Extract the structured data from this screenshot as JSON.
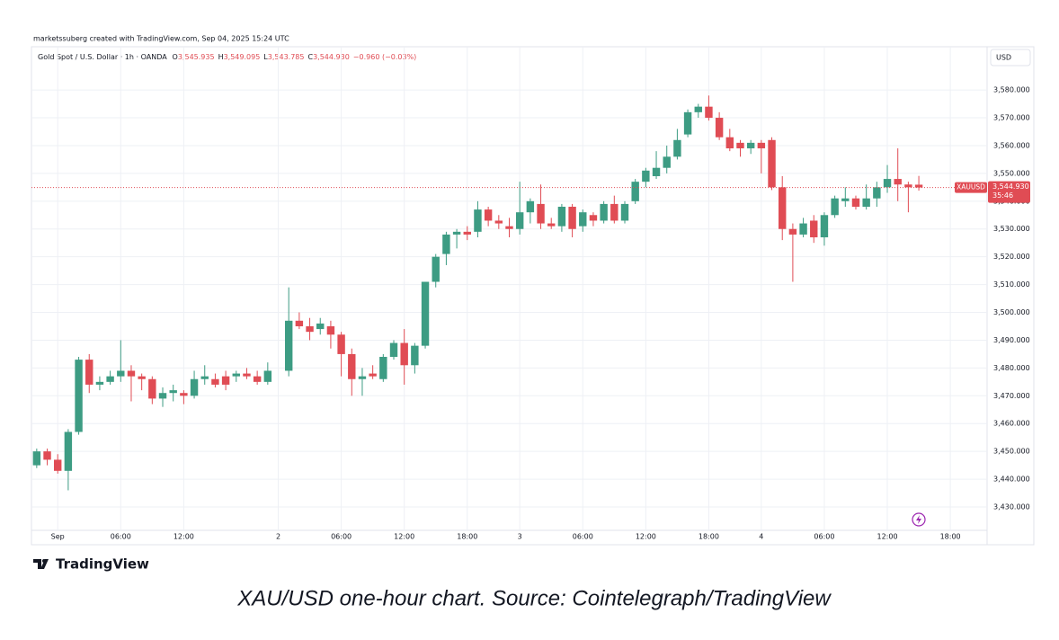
{
  "chart_data": {
    "type": "candlestick",
    "header": "marketssuberg created with TradingView.com, Sep 04, 2025 15:24 UTC",
    "symbol": "Gold Spot / U.S. Dollar · 1h · OANDA",
    "ohlc_legend": [
      [
        "O",
        "3,545.935"
      ],
      [
        "H",
        "3,549.095"
      ],
      [
        "L",
        "3,543.785"
      ],
      [
        "C",
        "3,544.930"
      ]
    ],
    "change": "−0.960 (−0.03%)",
    "currency": "USD",
    "ticker": "XAUUSD",
    "last_price": {
      "value": 3544.93,
      "label": "3,544.930"
    },
    "countdown": "35:46",
    "brand": "TradingView",
    "caption": "XAU/USD one-hour chart. Source: Cointelegraph/TradingView",
    "up_color": "#3d9c83",
    "down_color": "#e04c54",
    "grid": true,
    "categories": [
      null,
      null,
      "Sep",
      null,
      null,
      null,
      null,
      null,
      "06:00",
      null,
      null,
      null,
      null,
      null,
      "12:00",
      null,
      null,
      null,
      null,
      null,
      null,
      null,
      null,
      "2",
      null,
      null,
      null,
      null,
      null,
      "06:00",
      null,
      null,
      null,
      null,
      null,
      "12:00",
      null,
      null,
      null,
      null,
      null,
      "18:00",
      null,
      null,
      null,
      null,
      "3",
      null,
      null,
      null,
      null,
      null,
      "06:00",
      null,
      null,
      null,
      null,
      null,
      "12:00",
      null,
      null,
      null,
      null,
      null,
      "18:00",
      null,
      null,
      null,
      null,
      "4",
      null,
      null,
      null,
      null,
      null,
      "06:00",
      null,
      null,
      null,
      null,
      null,
      "12:00",
      null,
      null,
      null,
      null,
      null,
      "18:00",
      null,
      null,
      null
    ],
    "open": [
      3445,
      3450,
      3447,
      3443,
      3457,
      3483,
      3474,
      3475,
      3477,
      3479,
      3477,
      3476,
      3469,
      3471,
      3471,
      3470,
      3476,
      3476,
      3477,
      3477,
      3478,
      3477,
      3475,
      null,
      3479,
      3497,
      3495,
      3494,
      3495,
      3492,
      3485,
      3476,
      3478,
      3476,
      3484,
      3489,
      3481,
      3488,
      3511,
      3521,
      3528,
      3529,
      3529,
      3537,
      3533,
      3531,
      3530,
      3536,
      3539,
      3532,
      3531,
      3538,
      3531,
      3535,
      3533,
      3539,
      3533,
      3540,
      3547,
      3549,
      3552,
      3556,
      3564,
      3572,
      3574,
      3570,
      3563,
      3561,
      3559,
      3561,
      3562,
      3545,
      3530,
      3528,
      3533,
      3527,
      3535,
      3540,
      3541,
      3538,
      3541,
      3545,
      3548,
      3546,
      3545.935,
      null,
      null,
      null,
      null,
      null,
      null
    ],
    "high": [
      3451,
      3451,
      3449,
      3458,
      3484,
      3485,
      3477,
      3479,
      3490,
      3481,
      3478,
      3477,
      3473,
      3474,
      3472,
      3479,
      3481,
      3478,
      3479,
      3479,
      3480,
      3479,
      3482,
      null,
      3509,
      3500,
      3498,
      3498,
      3497,
      3493,
      3487,
      3480,
      3481,
      3485,
      3490,
      3494,
      3489,
      3511,
      3521,
      3529,
      3530,
      3531,
      3540,
      3538,
      3535,
      3534,
      3547,
      3541,
      3546,
      3534,
      3539,
      3539,
      3537,
      3536,
      3540,
      3542,
      3540,
      3548,
      3552,
      3558,
      3560,
      3566,
      3573,
      3575,
      3578,
      3572,
      3566,
      3562,
      3562,
      3562,
      3563,
      3549,
      3532,
      3534,
      3535,
      3536,
      3542,
      3545,
      3542,
      3546,
      3547,
      3553,
      3559,
      3547,
      3549.095,
      null,
      null,
      null,
      null,
      null,
      null
    ],
    "low": [
      3444,
      3445,
      3442,
      3436,
      3456,
      3471,
      3472,
      3474,
      3475,
      3468,
      3472,
      3467,
      3466,
      3468,
      3467,
      3469,
      3474,
      3473,
      3472,
      3475,
      3476,
      3474,
      3474,
      null,
      3477,
      3494,
      3490,
      3492,
      3487,
      3477,
      3470,
      3470,
      3476,
      3475,
      3483,
      3474,
      3478,
      3487,
      3509,
      3517,
      3523,
      3526,
      3527,
      3531,
      3530,
      3527,
      3528,
      3532,
      3530,
      3530,
      3529,
      3527,
      3529,
      3531,
      3532,
      3532,
      3532,
      3539,
      3545,
      3548,
      3550,
      3555,
      3563,
      3570,
      3569,
      3562,
      3558,
      3556,
      3557,
      3550,
      3544,
      3526,
      3511,
      3527,
      3525,
      3524,
      3534,
      3538,
      3537,
      3537,
      3538,
      3543,
      3540,
      3536,
      3543.785,
      null,
      null,
      null,
      null,
      null,
      null
    ],
    "close": [
      3450,
      3447,
      3443,
      3457,
      3483,
      3474,
      3475,
      3477,
      3479,
      3477,
      3476,
      3469,
      3471,
      3472,
      3470,
      3476,
      3477,
      3474,
      3474,
      3478,
      3477,
      3475,
      3479,
      null,
      3497,
      3495,
      3493,
      3496,
      3492,
      3485,
      3476,
      3477,
      3477,
      3484,
      3489,
      3481,
      3488,
      3511,
      3520,
      3528,
      3529,
      3528,
      3537,
      3533,
      3532,
      3530,
      3536,
      3540,
      3532,
      3531,
      3538,
      3530,
      3536,
      3533,
      3539,
      3533,
      3539,
      3547,
      3551,
      3552,
      3556,
      3562,
      3572,
      3574,
      3570,
      3563,
      3559,
      3559,
      3561,
      3559,
      3545,
      3530,
      3528,
      3532,
      3527,
      3535,
      3541,
      3541,
      3538,
      3541,
      3545,
      3548,
      3546,
      3545,
      3544.93,
      null,
      null,
      null,
      null,
      null,
      null
    ],
    "ylim": [
      3421.6,
      3586.5
    ],
    "yticks": [
      {
        "value": 3430,
        "label": "3,430.000"
      },
      {
        "value": 3440,
        "label": "3,440.000"
      },
      {
        "value": 3450,
        "label": "3,450.000"
      },
      {
        "value": 3460,
        "label": "3,460.000"
      },
      {
        "value": 3470,
        "label": "3,470.000"
      },
      {
        "value": 3480,
        "label": "3,480.000"
      },
      {
        "value": 3490,
        "label": "3,490.000"
      },
      {
        "value": 3500,
        "label": "3,500.000"
      },
      {
        "value": 3510,
        "label": "3,510.000"
      },
      {
        "value": 3520,
        "label": "3,520.000"
      },
      {
        "value": 3530,
        "label": "3,530.000"
      },
      {
        "value": 3540,
        "label": "3,540.000"
      },
      {
        "value": 3550,
        "label": "3,550.000"
      },
      {
        "value": 3560,
        "label": "3,560.000"
      },
      {
        "value": 3570,
        "label": "3,570.000"
      },
      {
        "value": 3580,
        "label": "3,580.000"
      }
    ]
  }
}
